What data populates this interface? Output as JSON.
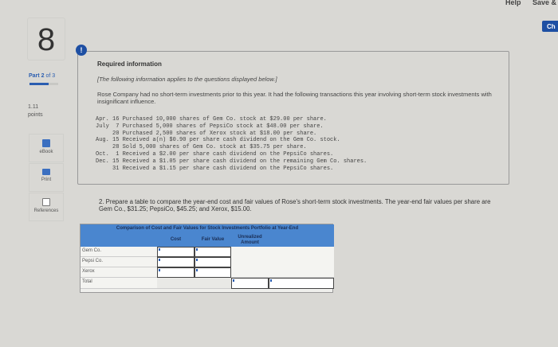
{
  "header": {
    "help": "Help",
    "save": "Save & E",
    "check": "Ch"
  },
  "sidebar": {
    "question_number": "8",
    "part_label": "Part",
    "part_current": "2",
    "part_of": "of 3",
    "part_progress": 0.67,
    "points_value": "1.11",
    "points_label": "points",
    "tools": [
      {
        "label": "eBook",
        "icon": "ebook-icon"
      },
      {
        "label": "Print",
        "icon": "print-icon"
      },
      {
        "label": "References",
        "icon": "references-icon"
      }
    ]
  },
  "info": {
    "icon": "!",
    "heading": "Required information",
    "note": "[The following information applies to the questions displayed below.]",
    "intro": "Rose Company had no short-term investments prior to this year. It had the following transactions this year involving short-term stock investments with insignificant influence.",
    "transactions": [
      "Apr. 16 Purchased 10,000 shares of Gem Co. stock at $29.00 per share.",
      "July  7 Purchased 5,000 shares of PepsiCo stock at $48.00 per share.",
      "     20 Purchased 2,500 shares of Xerox stock at $18.00 per share.",
      "Aug. 15 Received a(n) $0.90 per share cash dividend on the Gem Co. stock.",
      "     28 Sold 5,000 shares of Gem Co. stock at $35.75 per share.",
      "Oct.  1 Received a $2.00 per share cash dividend on the PepsiCo shares.",
      "Dec. 15 Received a $1.05 per share cash dividend on the remaining Gem Co. shares.",
      "     31 Received a $1.15 per share cash dividend on the PepsiCo shares."
    ]
  },
  "question": "2. Prepare a table to compare the year-end cost and fair values of Rose's short-term stock investments. The year-end fair values per share are Gem Co., $31.25; PepsiCo, $45.25; and Xerox, $15.00.",
  "table": {
    "title": "Comparison of Cost and Fair Values for Stock Investments Portfolio at Year-End",
    "columns": [
      "Cost",
      "Fair Value",
      "Unrealized Amount"
    ],
    "rows": [
      "Gem Co.",
      "Pepsi Co.",
      "Xerox",
      "Total"
    ]
  },
  "colors": {
    "accent": "#1e4fa3",
    "table_header": "#4a86cf"
  }
}
